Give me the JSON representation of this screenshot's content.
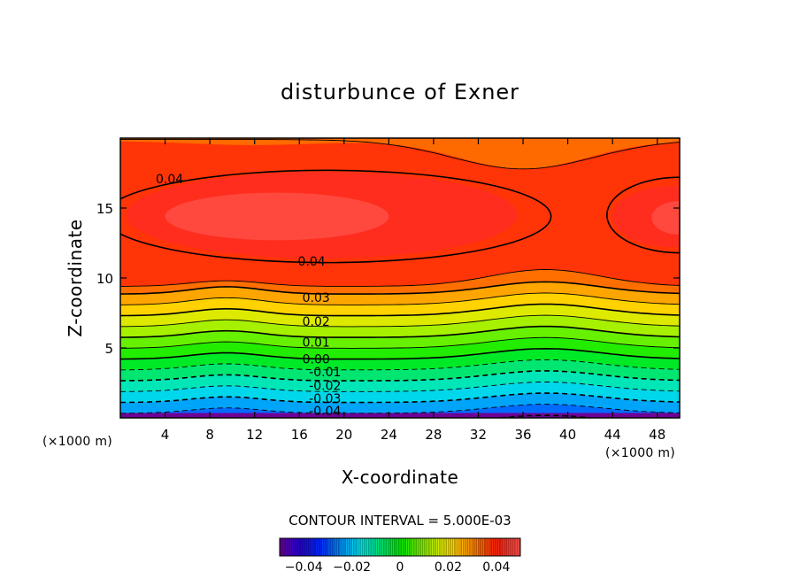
{
  "chart_data": {
    "type": "contour",
    "title": "disturbunce of Exner",
    "xlabel": "X-coordinate",
    "ylabel": "Z-coordinate",
    "x_unit_label": "(×1000 m)",
    "y_unit_label": "(×1000 m)",
    "xlim": [
      0,
      50
    ],
    "ylim": [
      0,
      20
    ],
    "x_ticks": [
      4,
      8,
      12,
      16,
      20,
      24,
      28,
      32,
      36,
      40,
      44,
      48
    ],
    "y_ticks": [
      5,
      10,
      15
    ],
    "contour_interval_text": "CONTOUR INTERVAL = 5.000E-03",
    "contour_interval": 0.005,
    "value_range": [
      -0.05,
      0.05
    ],
    "negative_contours": "dashed",
    "contour_labels": [
      {
        "text": "0.04",
        "x": 4.4,
        "z": 17.1
      },
      {
        "text": "0.04",
        "x": 17.1,
        "z": 11.2
      },
      {
        "text": "0.03",
        "x": 17.5,
        "z": 8.6
      },
      {
        "text": "0.02",
        "x": 17.5,
        "z": 6.9
      },
      {
        "text": "0.01",
        "x": 17.5,
        "z": 5.4
      },
      {
        "text": "0.00",
        "x": 17.5,
        "z": 4.2
      },
      {
        "text": "-0.01",
        "x": 18.3,
        "z": 3.3
      },
      {
        "text": "-0.02",
        "x": 18.3,
        "z": 2.3
      },
      {
        "text": "-0.03",
        "x": 18.3,
        "z": 1.4
      },
      {
        "text": "-0.04",
        "x": 18.3,
        "z": 0.5
      }
    ],
    "colorbar": {
      "ticks": [
        {
          "label": "−0.04",
          "value": -0.04
        },
        {
          "label": "−0.02",
          "value": -0.02
        },
        {
          "label": "0",
          "value": 0
        },
        {
          "label": "0.02",
          "value": 0.02
        },
        {
          "label": "0.04",
          "value": 0.04
        }
      ]
    }
  }
}
